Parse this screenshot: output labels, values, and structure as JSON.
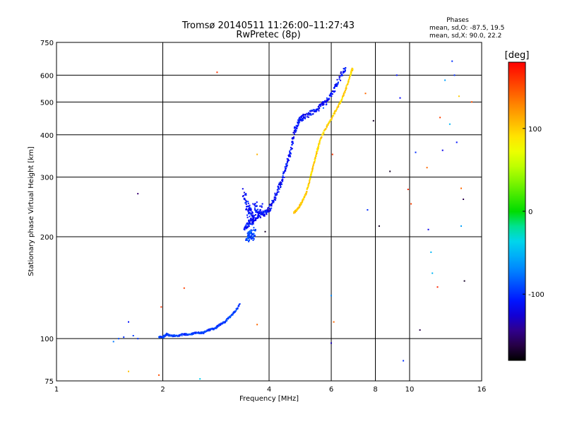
{
  "chart_data": {
    "type": "scatter",
    "title": "Tromsø 20140511 11:26:00–11:27:43",
    "subtitle": "RwPretec (8p)",
    "phases_info": {
      "header": "Phases",
      "line_o": "mean, sd,O: -87.5, 19.5",
      "line_x": "mean, sd,X:  90.0, 22.2"
    },
    "xlabel": "Frequency [MHz]",
    "ylabel": "Stationary phase Virtual Height [km]",
    "x_scale": "log2",
    "y_scale": "log",
    "xlim": [
      1,
      16
    ],
    "ylim": [
      75,
      750
    ],
    "x_ticks": [
      1,
      2,
      4,
      6,
      8,
      10,
      16
    ],
    "x_tick_labels": [
      "1",
      "2",
      "4",
      "6",
      "8",
      "10",
      "16"
    ],
    "y_ticks": [
      75,
      100,
      200,
      300,
      400,
      500,
      600,
      750
    ],
    "y_tick_labels": [
      "75",
      "100",
      "200",
      "300",
      "400",
      "500",
      "600",
      "750"
    ],
    "grid": true,
    "colorbar": {
      "label": "[deg]",
      "min": -180,
      "max": 180,
      "ticks": [
        100,
        0,
        -100
      ],
      "tick_labels": [
        "100",
        "0",
        "-100"
      ]
    },
    "traces": [
      {
        "phase": -95,
        "spread": 0.004,
        "points": [
          [
            1.95,
            101
          ],
          [
            2.0,
            101
          ],
          [
            2.05,
            103
          ],
          [
            2.1,
            102
          ],
          [
            2.2,
            102
          ],
          [
            2.3,
            103
          ],
          [
            2.4,
            103
          ],
          [
            2.5,
            104
          ],
          [
            2.6,
            104
          ],
          [
            2.7,
            106
          ],
          [
            2.8,
            107
          ],
          [
            2.9,
            110
          ],
          [
            3.0,
            112
          ],
          [
            3.1,
            116
          ],
          [
            3.2,
            120
          ],
          [
            3.3,
            126
          ]
        ]
      },
      {
        "phase": -112,
        "spread": 0.012,
        "points": [
          [
            3.4,
            210
          ],
          [
            3.5,
            218
          ],
          [
            3.6,
            225
          ],
          [
            3.7,
            230
          ],
          [
            3.8,
            232
          ],
          [
            3.9,
            235
          ],
          [
            4.0,
            240
          ],
          [
            4.1,
            252
          ],
          [
            4.2,
            268
          ],
          [
            4.3,
            285
          ],
          [
            4.4,
            305
          ],
          [
            4.5,
            330
          ],
          [
            4.6,
            360
          ],
          [
            4.7,
            400
          ],
          [
            4.8,
            430
          ],
          [
            4.9,
            445
          ],
          [
            5.0,
            452
          ],
          [
            5.2,
            460
          ],
          [
            5.4,
            470
          ],
          [
            5.6,
            485
          ],
          [
            5.8,
            500
          ],
          [
            6.0,
            525
          ],
          [
            6.2,
            560
          ],
          [
            6.4,
            600
          ],
          [
            6.6,
            630
          ]
        ]
      },
      {
        "phase": -110,
        "spread": 0.03,
        "points": [
          [
            3.4,
            270
          ],
          [
            3.45,
            250
          ],
          [
            3.5,
            235
          ],
          [
            3.55,
            225
          ],
          [
            3.6,
            240
          ],
          [
            3.7,
            245
          ],
          [
            3.8,
            240
          ]
        ]
      },
      {
        "phase": -92,
        "spread": 0.02,
        "points": [
          [
            3.45,
            195
          ],
          [
            3.5,
            200
          ],
          [
            3.55,
            205
          ],
          [
            3.6,
            200
          ],
          [
            3.65,
            210
          ]
        ]
      },
      {
        "phase": 98,
        "spread": 0.004,
        "points": [
          [
            4.7,
            235
          ],
          [
            4.8,
            240
          ],
          [
            4.9,
            248
          ],
          [
            5.0,
            258
          ],
          [
            5.1,
            270
          ],
          [
            5.2,
            290
          ],
          [
            5.3,
            315
          ],
          [
            5.4,
            340
          ],
          [
            5.5,
            365
          ],
          [
            5.6,
            390
          ],
          [
            5.8,
            420
          ],
          [
            6.0,
            445
          ],
          [
            6.2,
            475
          ],
          [
            6.4,
            505
          ],
          [
            6.6,
            545
          ],
          [
            6.8,
            600
          ],
          [
            6.9,
            630
          ]
        ]
      }
    ],
    "scattered_points": [
      [
        1.45,
        98,
        -75
      ],
      [
        1.5,
        100,
        -90
      ],
      [
        1.55,
        101,
        -100
      ],
      [
        1.6,
        112,
        -110
      ],
      [
        1.65,
        102,
        -95
      ],
      [
        1.7,
        100,
        -100
      ],
      [
        1.6,
        80,
        105
      ],
      [
        1.95,
        78,
        150
      ],
      [
        1.98,
        124,
        160
      ],
      [
        1.7,
        268,
        -150
      ],
      [
        2.3,
        141,
        155
      ],
      [
        2.55,
        76,
        -40
      ],
      [
        2.85,
        612,
        160
      ],
      [
        3.7,
        350,
        110
      ],
      [
        3.7,
        110,
        140
      ],
      [
        3.9,
        207,
        -170
      ],
      [
        5.7,
        480,
        -80
      ],
      [
        6.0,
        97,
        -130
      ],
      [
        6.0,
        134,
        -70
      ],
      [
        6.05,
        350,
        160
      ],
      [
        6.1,
        112,
        140
      ],
      [
        7.5,
        530,
        140
      ],
      [
        7.6,
        240,
        -100
      ],
      [
        7.9,
        440,
        -170
      ],
      [
        8.2,
        215,
        -170
      ],
      [
        8.8,
        312,
        -170
      ],
      [
        9.2,
        600,
        -110
      ],
      [
        9.4,
        514,
        -115
      ],
      [
        9.6,
        86,
        -100
      ],
      [
        9.9,
        276,
        165
      ],
      [
        10.1,
        250,
        155
      ],
      [
        10.4,
        355,
        -100
      ],
      [
        10.7,
        106,
        -160
      ],
      [
        11.2,
        320,
        140
      ],
      [
        11.3,
        210,
        -120
      ],
      [
        11.5,
        180,
        -50
      ],
      [
        11.6,
        156,
        -50
      ],
      [
        12.0,
        142,
        165
      ],
      [
        12.2,
        450,
        155
      ],
      [
        12.4,
        360,
        -120
      ],
      [
        12.6,
        580,
        -60
      ],
      [
        13.0,
        430,
        -50
      ],
      [
        13.2,
        660,
        -100
      ],
      [
        13.4,
        600,
        -100
      ],
      [
        13.6,
        380,
        -110
      ],
      [
        13.8,
        520,
        100
      ],
      [
        14.0,
        215,
        -60
      ],
      [
        14.0,
        278,
        140
      ],
      [
        14.2,
        258,
        -160
      ],
      [
        14.3,
        148,
        -170
      ],
      [
        15.0,
        500,
        150
      ]
    ]
  }
}
